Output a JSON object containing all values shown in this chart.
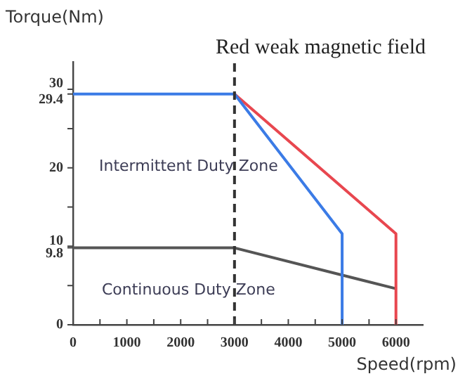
{
  "chart_data": {
    "type": "line",
    "title": "Red weak magnetic field",
    "xlabel": "Speed(rpm)",
    "ylabel": "Torque(Nm)",
    "xlim": [
      0,
      6500
    ],
    "xticks": [
      0,
      {
        "value": 500,
        "label": null
      },
      1000,
      {
        "value": 1500,
        "label": null
      },
      2000,
      {
        "value": 2500,
        "label": null
      },
      3000,
      {
        "value": 3500,
        "label": null
      },
      4000,
      {
        "value": 4500,
        "label": null
      },
      5000,
      {
        "value": 5500,
        "label": null
      },
      6000
    ],
    "ylim": [
      0,
      33.5
    ],
    "yticks": [
      0,
      {
        "value": 5,
        "label": null
      },
      9.8,
      10,
      {
        "value": 15,
        "label": null
      },
      20,
      {
        "value": 25,
        "label": null
      },
      29.4,
      30
    ],
    "grid": false,
    "legend": false,
    "marker": "none",
    "series": [
      {
        "color": "#3b7be6",
        "x": [
          0,
          3000,
          5000,
          5000
        ],
        "values": [
          29.4,
          29.4,
          11.6,
          0
        ]
      },
      {
        "color": "#e8474f",
        "x": [
          3000,
          6000,
          6000
        ],
        "values": [
          29.4,
          11.6,
          0
        ]
      },
      {
        "color": "#555555",
        "x": [
          0,
          3000,
          6000
        ],
        "values": [
          9.8,
          9.8,
          4.6
        ]
      }
    ],
    "ref_lines": [
      {
        "axis": "x",
        "value": 3000,
        "color": "#333333",
        "line_style": "dashed"
      }
    ],
    "annotations": [
      "Intermittent Duty Zone",
      "Continuous Duty Zone"
    ]
  }
}
